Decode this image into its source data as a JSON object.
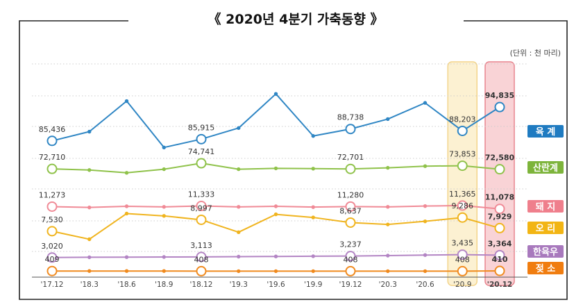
{
  "chart_data": {
    "type": "line",
    "title": "《 2020년 4분기 가축동향 》",
    "unit_note": "(단위 : 천 마리)",
    "categories": [
      "'17.12",
      "'18.3",
      "'18.6",
      "'18.9",
      "'18.12",
      "'19.3",
      "'19.6",
      "'19.9",
      "'19.12",
      "'20.3",
      "'20.6",
      "'20.9",
      "'20.12"
    ],
    "series": [
      {
        "name": "육 계",
        "color": "#2f86c4",
        "label_bg": "#1f7bc1",
        "values": [
          85436,
          88000,
          96500,
          83600,
          85915,
          89000,
          98500,
          86800,
          88738,
          91500,
          96000,
          88203,
          94835
        ],
        "labels": [
          "85,436",
          "",
          "",
          "",
          "85,915",
          "",
          "",
          "",
          "88,738",
          "",
          "",
          "88,203",
          "94,835"
        ]
      },
      {
        "name": "산란계",
        "color": "#8fc24a",
        "label_bg": "#7db43b",
        "values": [
          72710,
          72300,
          71300,
          72600,
          74741,
          72600,
          72900,
          72800,
          72701,
          73100,
          73700,
          73853,
          72580
        ],
        "labels": [
          "72,710",
          "",
          "",
          "",
          "74,741",
          "",
          "",
          "",
          "72,701",
          "",
          "",
          "73,853",
          "72,580"
        ]
      },
      {
        "name": "돼 지",
        "color": "#f08a96",
        "label_bg": "#ef7f8c",
        "values": [
          11273,
          11200,
          11300,
          11250,
          11333,
          11250,
          11300,
          11230,
          11280,
          11250,
          11320,
          11365,
          11078
        ],
        "labels": [
          "11,273",
          "",
          "",
          "",
          "11,333",
          "",
          "",
          "",
          "11,280",
          "",
          "",
          "11,365",
          "11,078"
        ]
      },
      {
        "name": "오 리",
        "color": "#f0b41e",
        "label_bg": "#f2b514",
        "values": [
          7530,
          6500,
          9800,
          9500,
          8997,
          7400,
          9700,
          9300,
          8637,
          8400,
          8800,
          9286,
          7929
        ],
        "labels": [
          "7,530",
          "",
          "",
          "",
          "8,997",
          "",
          "",
          "",
          "8,637",
          "",
          "",
          "9,286",
          "7,929"
        ]
      },
      {
        "name": "한육우",
        "color": "#b385c4",
        "label_bg": "#a879bd",
        "values": [
          3020,
          3060,
          3080,
          3100,
          3113,
          3150,
          3180,
          3210,
          3237,
          3300,
          3380,
          3435,
          3364
        ],
        "labels": [
          "3,020",
          "",
          "",
          "",
          "3,113",
          "",
          "",
          "",
          "3,237",
          "",
          "",
          "3,435",
          "3,364"
        ]
      },
      {
        "name": "젖 소",
        "color": "#f08a1e",
        "label_bg": "#f07d10",
        "values": [
          409,
          409,
          409,
          409,
          408,
          408,
          408,
          408,
          408,
          408,
          408,
          408,
          410
        ],
        "labels": [
          "409",
          "",
          "",
          "",
          "408",
          "",
          "",
          "",
          "408",
          "",
          "",
          "408",
          "410"
        ]
      }
    ],
    "highlight_categories": [
      "'20.9",
      "'20.12"
    ],
    "bold_last_labels": true
  },
  "colors": {
    "frame": "#222222",
    "grid": "#cccccc",
    "highlight_prev_fill": "#fcf1d2",
    "highlight_prev_stroke": "#f3d48a",
    "highlight_last_fill": "#f9d3d6",
    "highlight_last_stroke": "#e8848e"
  }
}
